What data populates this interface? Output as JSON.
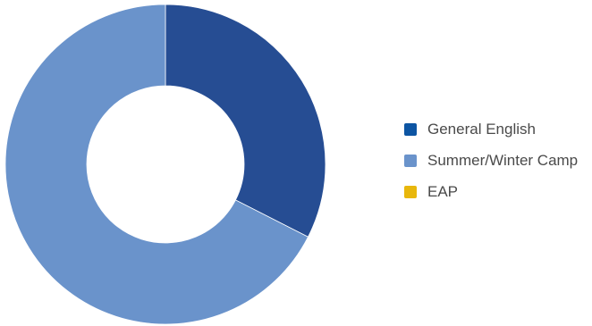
{
  "chart_data": {
    "type": "pie",
    "donut": true,
    "title": "",
    "legend_position": "right",
    "series": [
      {
        "name": "General English",
        "value": 32.5,
        "color": "#264d93",
        "legend_color": "#0d55a3"
      },
      {
        "name": "Summer/Winter Camp",
        "value": 67.5,
        "color": "#6a93cb",
        "legend_color": "#6a93cb"
      },
      {
        "name": "EAP",
        "value": 0,
        "color": "#e8b70c",
        "legend_color": "#e8b70c"
      }
    ]
  }
}
